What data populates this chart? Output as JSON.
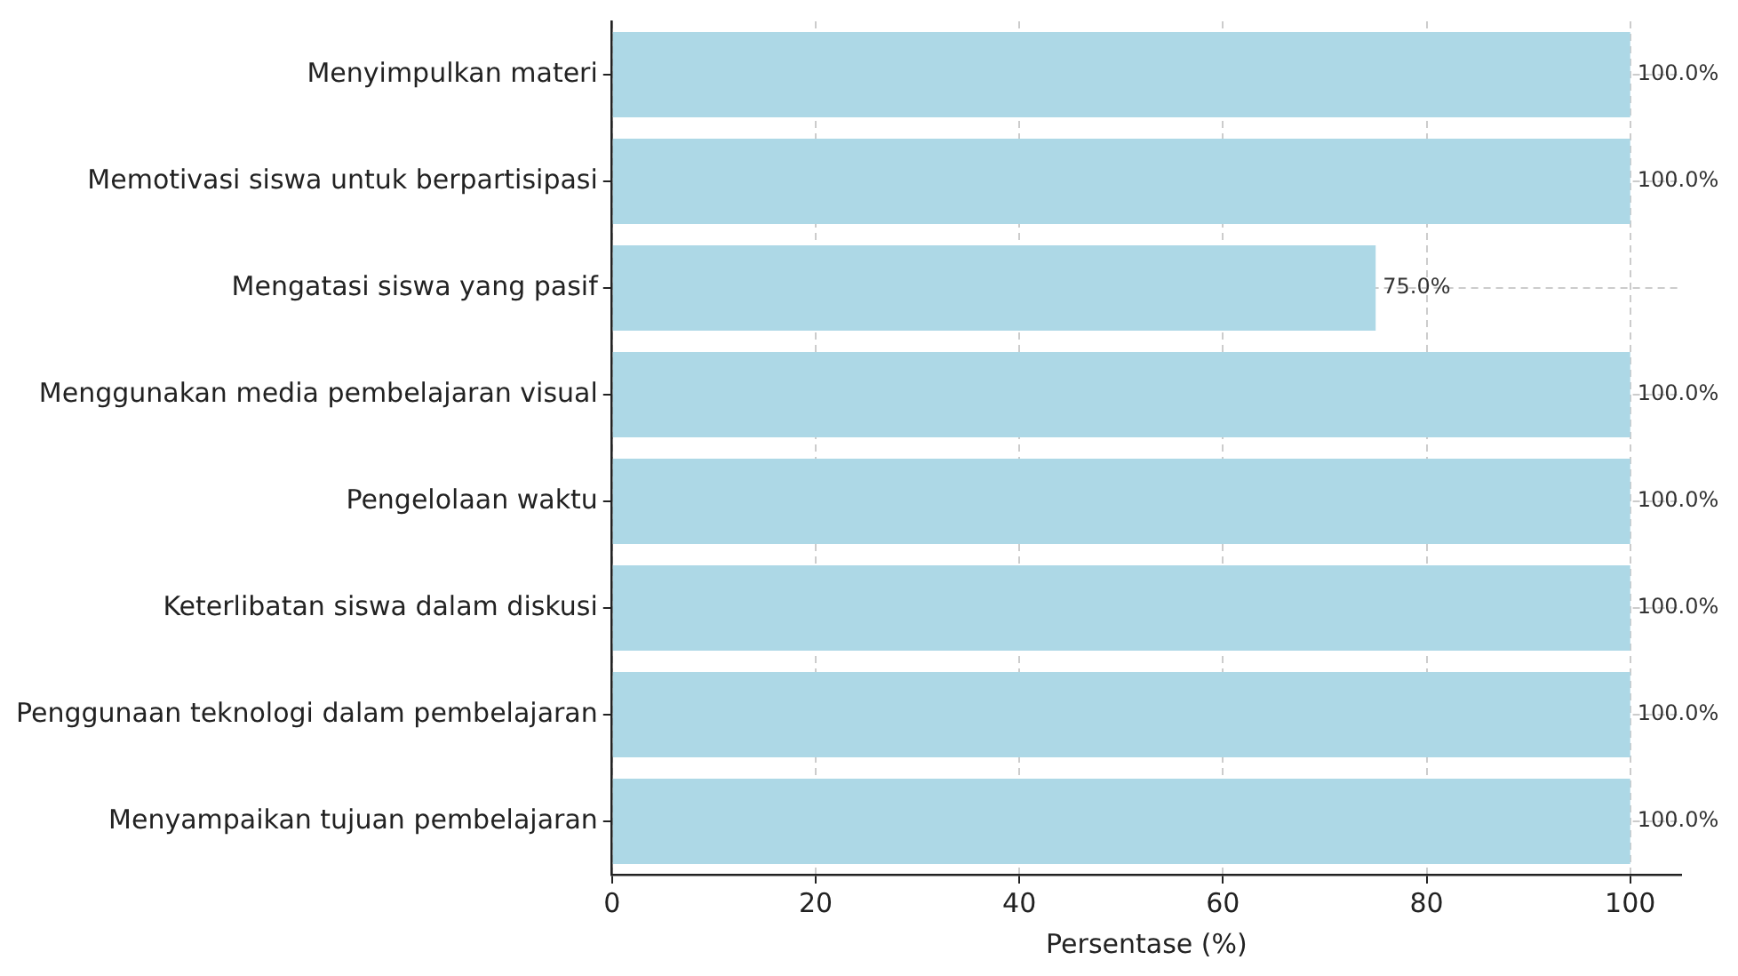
{
  "chart_data": {
    "type": "bar",
    "orientation": "horizontal",
    "xlabel": "Persentase (%)",
    "categories": [
      "Menyimpulkan materi",
      "Memotivasi siswa untuk berpartisipasi",
      "Mengatasi siswa yang pasif",
      "Menggunakan media pembelajaran visual",
      "Pengelolaan waktu",
      "Keterlibatan siswa dalam diskusi",
      "Penggunaan teknologi dalam pembelajaran",
      "Menyampaikan tujuan pembelajaran"
    ],
    "values": [
      100,
      100,
      75,
      100,
      100,
      100,
      100,
      100
    ],
    "value_labels": [
      "100.0%",
      "100.0%",
      "75.0%",
      "100.0%",
      "100.0%",
      "100.0%",
      "100.0%",
      "100.0%"
    ],
    "color": "#add8e6",
    "xlim": [
      0,
      105
    ],
    "xticks": [
      0,
      20,
      40,
      60,
      80,
      100
    ],
    "grid": true
  }
}
